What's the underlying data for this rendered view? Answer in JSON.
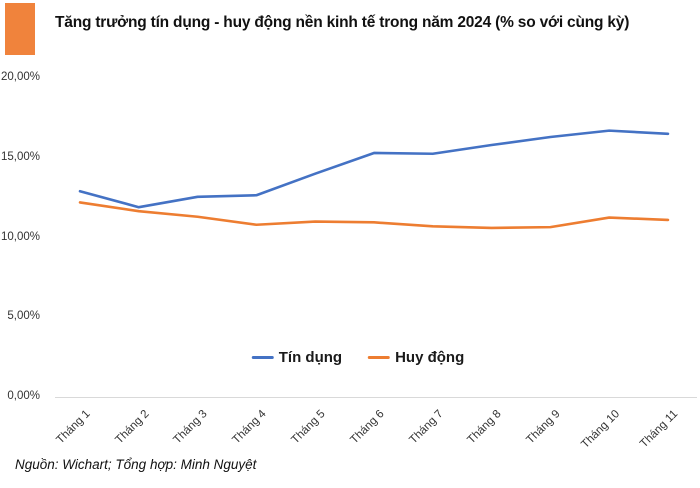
{
  "accent_color": "#F0833C",
  "axis_line_color": "#d9d9d9",
  "chart_data": {
    "type": "line",
    "title": "Tăng trưởng tín dụng - huy động nền kinh tế trong năm 2024 (% so với cùng kỳ)",
    "categories": [
      "Tháng 1",
      "Tháng 2",
      "Tháng 3",
      "Tháng 4",
      "Tháng 5",
      "Tháng 6",
      "Tháng 7",
      "Tháng 8",
      "Tháng 9",
      "Tháng 10",
      "Tháng 11"
    ],
    "series": [
      {
        "name": "Tín dụng",
        "color": "#4472C4",
        "values": [
          12.9,
          11.9,
          12.55,
          12.65,
          14.0,
          15.3,
          15.25,
          15.8,
          16.3,
          16.7,
          16.5
        ]
      },
      {
        "name": "Huy động",
        "color": "#ED7D31",
        "values": [
          12.2,
          11.65,
          11.3,
          10.8,
          11.0,
          10.95,
          10.7,
          10.6,
          10.65,
          11.25,
          11.1
        ]
      }
    ],
    "xlabel": "",
    "ylabel": "",
    "ylim": [
      0,
      20
    ],
    "yticks": [
      {
        "value": 20,
        "label": "20,00%"
      },
      {
        "value": 15,
        "label": "15,00%"
      },
      {
        "value": 10,
        "label": "10,00%"
      },
      {
        "value": 5,
        "label": "5,00%"
      },
      {
        "value": 0,
        "label": "0,00%"
      }
    ],
    "grid": false,
    "legend_position": "bottom-center"
  },
  "footer": {
    "source": "Nguồn: Wichart; Tổng hợp: Minh Nguyệt"
  }
}
